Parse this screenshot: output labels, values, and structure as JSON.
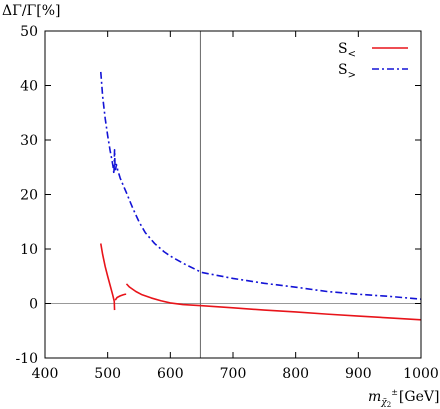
{
  "chart_data": {
    "type": "line",
    "ylabel": "ΔΓ/Γ[%]",
    "xlabel": "m",
    "xlabel_sub": "χ̃",
    "xlabel_sub_index": "2",
    "xlabel_sup": "±",
    "xlabel_unit": "[GeV]",
    "xlim": [
      400,
      1000
    ],
    "ylim": [
      -10,
      50
    ],
    "xticks": [
      400,
      500,
      600,
      700,
      800,
      900,
      1000
    ],
    "yticks": [
      -10,
      0,
      10,
      20,
      30,
      40,
      50
    ],
    "grid": false,
    "legend_position": "top-right",
    "reference_lines": {
      "y": 0,
      "x": 648
    },
    "series": [
      {
        "name": "S<",
        "name_main": "S",
        "name_sub": "<",
        "color": "#e8141a",
        "dash": "solid",
        "segments": [
          [
            [
              489,
              11.0
            ],
            [
              492,
              9.0
            ],
            [
              496,
              6.8
            ],
            [
              500,
              5.0
            ],
            [
              504,
              3.3
            ],
            [
              508,
              1.6
            ],
            [
              510.5,
              0.4
            ],
            [
              511,
              -1.2
            ]
          ],
          [
            [
              512,
              0.6
            ],
            [
              515,
              1.1
            ],
            [
              520,
              1.4
            ],
            [
              525,
              1.6
            ],
            [
              528,
              1.7
            ],
            [
              529.5,
              1.7
            ]
          ],
          [
            [
              530,
              3.6
            ],
            [
              535,
              3.0
            ],
            [
              545,
              2.2
            ],
            [
              555,
              1.6
            ],
            [
              570,
              1.0
            ],
            [
              585,
              0.5
            ],
            [
              600,
              0.1
            ],
            [
              620,
              -0.2
            ],
            [
              650,
              -0.4
            ],
            [
              700,
              -0.8
            ],
            [
              750,
              -1.2
            ],
            [
              800,
              -1.55
            ],
            [
              850,
              -1.95
            ],
            [
              900,
              -2.3
            ],
            [
              950,
              -2.65
            ],
            [
              1000,
              -3.0
            ]
          ]
        ]
      },
      {
        "name": "S>",
        "name_main": "S",
        "name_sub": ">",
        "color": "#1313d6",
        "dash": "dashdot",
        "segments": [
          [
            [
              489,
              42.5
            ],
            [
              492,
              38.0
            ],
            [
              496,
              34.0
            ],
            [
              500,
              30.8
            ],
            [
              504,
              28.0
            ],
            [
              507,
              26.2
            ],
            [
              508.5,
              25.2
            ],
            [
              510,
              23.8
            ],
            [
              511,
              28.2
            ],
            [
              512,
              24.2
            ],
            [
              514,
              25.5
            ],
            [
              516,
              24.5
            ],
            [
              520,
              23.0
            ],
            [
              530,
              20.3
            ],
            [
              540,
              17.5
            ],
            [
              550,
              15.0
            ],
            [
              560,
              13.0
            ],
            [
              575,
              11.0
            ],
            [
              590,
              9.5
            ],
            [
              600,
              8.7
            ],
            [
              620,
              7.4
            ],
            [
              650,
              5.7
            ],
            [
              700,
              4.6
            ],
            [
              750,
              3.7
            ],
            [
              800,
              3.0
            ],
            [
              850,
              2.2
            ],
            [
              900,
              1.7
            ],
            [
              950,
              1.3
            ],
            [
              1000,
              0.8
            ]
          ]
        ]
      }
    ]
  }
}
